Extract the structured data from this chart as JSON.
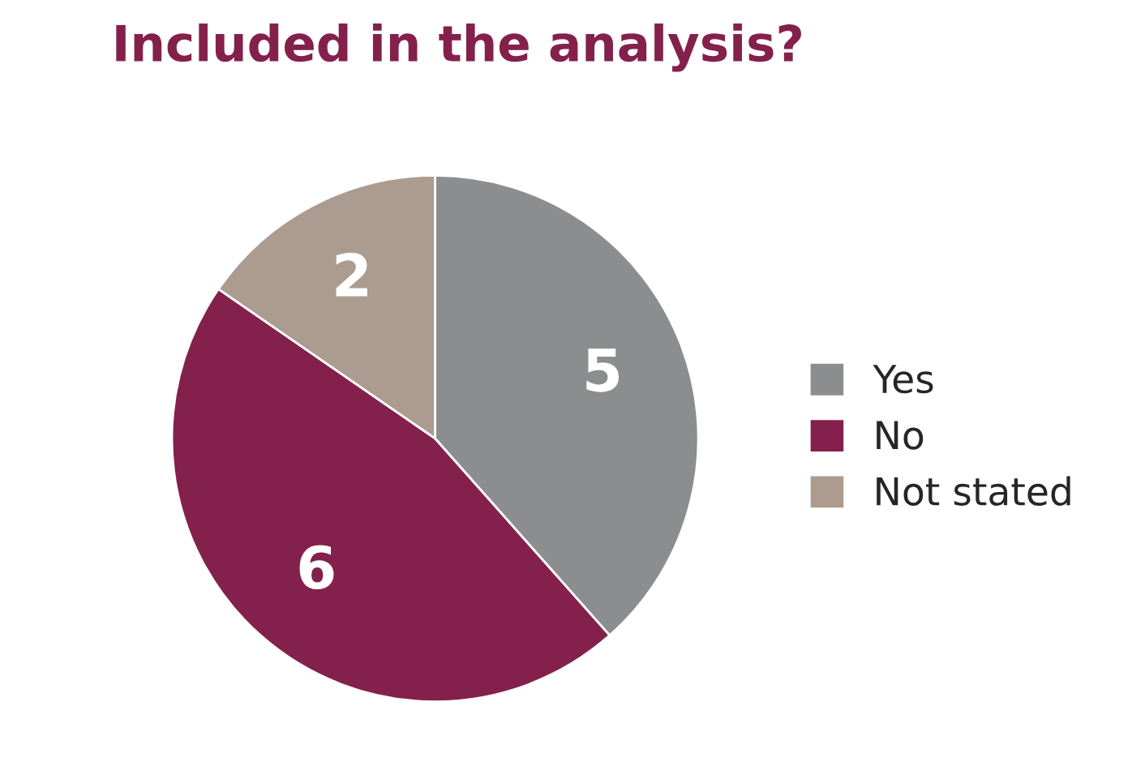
{
  "chart_data": {
    "type": "pie",
    "title": "Included in the analysis?",
    "categories": [
      "Yes",
      "No",
      "Not stated"
    ],
    "values": [
      5,
      6,
      2
    ],
    "colors": [
      "#8c8d8f",
      "#84204c",
      "#ab9c8f"
    ],
    "data_labels": true,
    "legend": "right"
  }
}
